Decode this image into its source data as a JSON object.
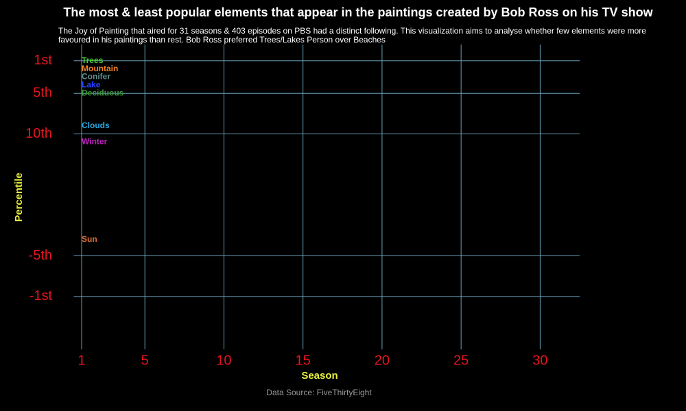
{
  "chart_data": {
    "type": "text-scatter",
    "title": "The most & least popular elements that appear in the paintings created by Bob Ross on his TV show",
    "subtitle": "The Joy of Painting that aired for 31 seasons & 403 episodes on PBS had a distinct following. This visualization aims to analyse whether few elements were more favoured in his paintings than rest. Bob Ross preferred Trees/Lakes Person over Beaches",
    "x_label": "Season",
    "y_label": "Percentile",
    "source": "Data Source: FiveThirtyEight",
    "x": [
      1
    ],
    "series": [
      {
        "name": "Trees",
        "color": "#4cd137",
        "values": [
          1
        ]
      },
      {
        "name": "Mountain",
        "color": "#f07f22",
        "values": [
          2
        ]
      },
      {
        "name": "Conifer",
        "color": "#5f8f8f",
        "values": [
          3
        ]
      },
      {
        "name": "Lake",
        "color": "#2440ff",
        "values": [
          4
        ]
      },
      {
        "name": "Deciduous",
        "color": "#3c9a3c",
        "values": [
          5
        ]
      },
      {
        "name": "Clouds",
        "color": "#2aa8e0",
        "values": [
          9
        ]
      },
      {
        "name": "Winter",
        "color": "#c020c0",
        "values": [
          11
        ]
      },
      {
        "name": "Sun",
        "color": "#e0703a",
        "values": [
          23
        ]
      }
    ],
    "xlim": [
      0.5,
      32.5
    ],
    "xticks": [
      1,
      5,
      10,
      15,
      20,
      25,
      30
    ],
    "ylim": [
      36.5,
      -1
    ],
    "yticks": [
      {
        "value": 1,
        "label": "1st"
      },
      {
        "value": 5,
        "label": "5th"
      },
      {
        "value": 10,
        "label": "10th"
      },
      {
        "value": 25,
        "label": "-5th"
      },
      {
        "value": 30,
        "label": "-1st"
      }
    ],
    "grid": true
  }
}
